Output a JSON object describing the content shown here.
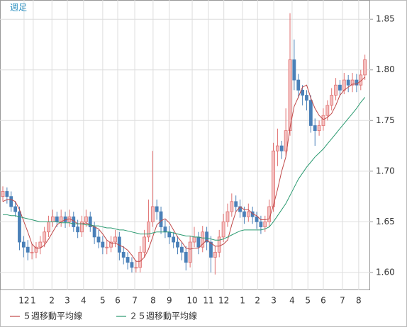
{
  "chart_data": {
    "type": "candlestick",
    "title": "週足",
    "up_color": "#e07070",
    "down_color": "#4a80b8",
    "grid": true,
    "xlim": [
      -0.68,
      88.25
    ],
    "xticks": [
      {
        "value": 5.1,
        "label": "12"
      },
      {
        "value": 7.3,
        "label": "1"
      },
      {
        "value": 11.8,
        "label": "2"
      },
      {
        "value": 15.5,
        "label": "3"
      },
      {
        "value": 19.4,
        "label": "4"
      },
      {
        "value": 24,
        "label": "5"
      },
      {
        "value": 27.6,
        "label": "6"
      },
      {
        "value": 31.7,
        "label": "7"
      },
      {
        "value": 36.1,
        "label": "8"
      },
      {
        "value": 40,
        "label": "9"
      },
      {
        "value": 45.5,
        "label": "10"
      },
      {
        "value": 49.4,
        "label": "11"
      },
      {
        "value": 53.1,
        "label": "12"
      },
      {
        "value": 57.6,
        "label": "1"
      },
      {
        "value": 61.2,
        "label": "2"
      },
      {
        "value": 65.1,
        "label": "3"
      },
      {
        "value": 69.5,
        "label": "4"
      },
      {
        "value": 73.3,
        "label": "5"
      },
      {
        "value": 77,
        "label": "6"
      },
      {
        "value": 81.6,
        "label": "7"
      },
      {
        "value": 85.5,
        "label": "8"
      }
    ],
    "ylim": [
      1.5825,
      1.869
    ],
    "yticks": [
      {
        "value": 1.6,
        "label": "1.60"
      },
      1.65,
      {
        "value": 1.7,
        "label": "1.70"
      },
      1.75,
      {
        "value": 1.8,
        "label": "1.80"
      },
      1.85
    ],
    "open": [
      1.675,
      1.68,
      1.675,
      1.665,
      1.66,
      1.63,
      1.625,
      1.62,
      1.62,
      1.625,
      1.63,
      1.64,
      1.65,
      1.655,
      1.65,
      1.655,
      1.65,
      1.655,
      1.645,
      1.64,
      1.65,
      1.655,
      1.645,
      1.635,
      1.63,
      1.625,
      1.625,
      1.63,
      1.635,
      1.62,
      1.615,
      1.61,
      1.605,
      1.605,
      1.62,
      1.635,
      1.65,
      1.665,
      1.66,
      1.645,
      1.64,
      1.635,
      1.63,
      1.625,
      1.62,
      1.61,
      1.63,
      1.635,
      1.625,
      1.64,
      1.63,
      1.615,
      1.62,
      1.635,
      1.65,
      1.66,
      1.67,
      1.665,
      1.66,
      1.655,
      1.66,
      1.655,
      1.65,
      1.645,
      1.65,
      1.665,
      1.72,
      1.725,
      1.72,
      1.74,
      1.81,
      1.79,
      1.78,
      1.775,
      1.77,
      1.745,
      1.74,
      1.745,
      1.755,
      1.765,
      1.775,
      1.785,
      1.78,
      1.79,
      1.785,
      1.79,
      1.785,
      1.795
    ],
    "high": [
      1.685,
      1.684,
      1.68,
      1.67,
      1.665,
      1.636,
      1.632,
      1.628,
      1.63,
      1.636,
      1.645,
      1.656,
      1.662,
      1.66,
      1.662,
      1.66,
      1.662,
      1.66,
      1.652,
      1.656,
      1.662,
      1.66,
      1.65,
      1.642,
      1.636,
      1.632,
      1.636,
      1.642,
      1.64,
      1.626,
      1.62,
      1.615,
      1.612,
      1.626,
      1.642,
      1.672,
      1.72,
      1.672,
      1.665,
      1.652,
      1.646,
      1.64,
      1.636,
      1.63,
      1.626,
      1.636,
      1.645,
      1.64,
      1.646,
      1.645,
      1.636,
      1.626,
      1.642,
      1.658,
      1.668,
      1.678,
      1.676,
      1.672,
      1.665,
      1.668,
      1.665,
      1.66,
      1.656,
      1.656,
      1.672,
      1.728,
      1.742,
      1.73,
      1.762,
      1.856,
      1.83,
      1.796,
      1.785,
      1.78,
      1.775,
      1.752,
      1.75,
      1.762,
      1.77,
      1.782,
      1.792,
      1.79,
      1.797,
      1.795,
      1.797,
      1.796,
      1.8,
      1.815
    ],
    "low": [
      1.67,
      1.668,
      1.66,
      1.655,
      1.622,
      1.615,
      1.612,
      1.613,
      1.614,
      1.618,
      1.625,
      1.635,
      1.645,
      1.645,
      1.645,
      1.644,
      1.645,
      1.64,
      1.634,
      1.635,
      1.645,
      1.64,
      1.628,
      1.624,
      1.618,
      1.618,
      1.62,
      1.625,
      1.612,
      1.608,
      1.603,
      1.6,
      1.6,
      1.6,
      1.615,
      1.63,
      1.645,
      1.652,
      1.638,
      1.634,
      1.628,
      1.624,
      1.618,
      1.612,
      1.602,
      1.605,
      1.625,
      1.618,
      1.62,
      1.622,
      1.6,
      1.598,
      1.615,
      1.63,
      1.645,
      1.655,
      1.66,
      1.654,
      1.648,
      1.65,
      1.648,
      1.643,
      1.638,
      1.64,
      1.645,
      1.66,
      1.705,
      1.712,
      1.715,
      1.735,
      1.78,
      1.772,
      1.765,
      1.76,
      1.738,
      1.725,
      1.735,
      1.74,
      1.75,
      1.76,
      1.77,
      1.774,
      1.776,
      1.778,
      1.778,
      1.778,
      1.78,
      1.79
    ],
    "close": [
      1.68,
      1.675,
      1.665,
      1.66,
      1.63,
      1.625,
      1.62,
      1.62,
      1.625,
      1.63,
      1.64,
      1.65,
      1.655,
      1.65,
      1.655,
      1.65,
      1.655,
      1.645,
      1.64,
      1.65,
      1.655,
      1.645,
      1.635,
      1.63,
      1.625,
      1.625,
      1.63,
      1.635,
      1.62,
      1.615,
      1.61,
      1.605,
      1.605,
      1.62,
      1.635,
      1.65,
      1.665,
      1.66,
      1.645,
      1.64,
      1.635,
      1.63,
      1.625,
      1.62,
      1.61,
      1.63,
      1.635,
      1.625,
      1.64,
      1.63,
      1.615,
      1.62,
      1.635,
      1.65,
      1.66,
      1.67,
      1.665,
      1.66,
      1.655,
      1.66,
      1.655,
      1.65,
      1.645,
      1.65,
      1.665,
      1.72,
      1.725,
      1.72,
      1.74,
      1.81,
      1.79,
      1.78,
      1.775,
      1.77,
      1.745,
      1.74,
      1.745,
      1.755,
      1.765,
      1.775,
      1.785,
      1.78,
      1.79,
      1.785,
      1.79,
      1.785,
      1.795,
      1.81
    ],
    "series": [
      {
        "name": "５週移動平均線",
        "color": "#c04848",
        "values": [
          1.67,
          1.672,
          1.672,
          1.67,
          1.662,
          1.651,
          1.64,
          1.628,
          1.624,
          1.624,
          1.627,
          1.633,
          1.64,
          1.647,
          1.65,
          1.652,
          1.653,
          1.651,
          1.648,
          1.648,
          1.649,
          1.647,
          1.645,
          1.643,
          1.638,
          1.632,
          1.629,
          1.629,
          1.627,
          1.625,
          1.622,
          1.617,
          1.611,
          1.611,
          1.615,
          1.623,
          1.635,
          1.647,
          1.651,
          1.653,
          1.649,
          1.642,
          1.635,
          1.63,
          1.624,
          1.623,
          1.624,
          1.624,
          1.628,
          1.632,
          1.629,
          1.626,
          1.626,
          1.628,
          1.632,
          1.647,
          1.66,
          1.665,
          1.662,
          1.662,
          1.658,
          1.656,
          1.652,
          1.652,
          1.653,
          1.666,
          1.682,
          1.7,
          1.714,
          1.743,
          1.764,
          1.773,
          1.783,
          1.785,
          1.772,
          1.762,
          1.755,
          1.751,
          1.753,
          1.757,
          1.765,
          1.775,
          1.78,
          1.783,
          1.786,
          1.786,
          1.789,
          1.793
        ]
      },
      {
        "name": "２５週移動平均線",
        "color": "#2a9a70",
        "values": [
          1.657,
          1.657,
          1.656,
          1.656,
          1.655,
          1.654,
          1.653,
          1.652,
          1.651,
          1.65,
          1.65,
          1.65,
          1.65,
          1.65,
          1.649,
          1.649,
          1.649,
          1.648,
          1.648,
          1.648,
          1.647,
          1.647,
          1.646,
          1.646,
          1.645,
          1.644,
          1.644,
          1.643,
          1.642,
          1.642,
          1.641,
          1.64,
          1.639,
          1.638,
          1.638,
          1.638,
          1.639,
          1.64,
          1.64,
          1.64,
          1.64,
          1.639,
          1.638,
          1.637,
          1.636,
          1.636,
          1.635,
          1.635,
          1.634,
          1.634,
          1.633,
          1.632,
          1.632,
          1.633,
          1.635,
          1.637,
          1.639,
          1.641,
          1.642,
          1.642,
          1.642,
          1.642,
          1.642,
          1.643,
          1.645,
          1.65,
          1.656,
          1.662,
          1.668,
          1.676,
          1.684,
          1.692,
          1.698,
          1.704,
          1.709,
          1.714,
          1.718,
          1.722,
          1.727,
          1.732,
          1.737,
          1.742,
          1.747,
          1.752,
          1.757,
          1.762,
          1.768,
          1.773
        ]
      }
    ]
  }
}
